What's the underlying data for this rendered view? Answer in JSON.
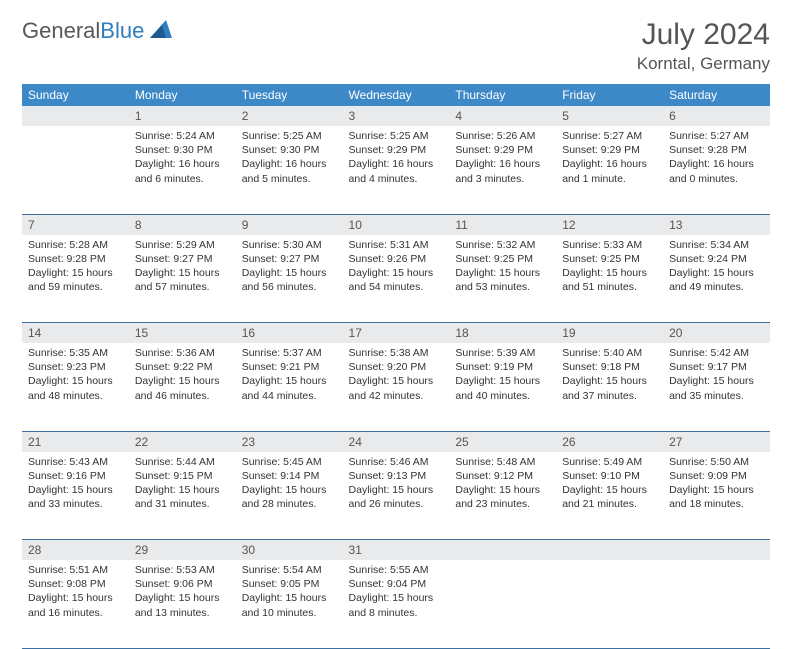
{
  "logo": {
    "general": "General",
    "blue": "Blue"
  },
  "title": "July 2024",
  "location": "Korntal, Germany",
  "colors": {
    "header_bg": "#3d89c8",
    "header_text": "#ffffff",
    "daynum_bg": "#e9eaeb",
    "row_border": "#3d6fa2",
    "logo_gray": "#585858",
    "logo_blue": "#2f7fc0"
  },
  "weekdays": [
    "Sunday",
    "Monday",
    "Tuesday",
    "Wednesday",
    "Thursday",
    "Friday",
    "Saturday"
  ],
  "weeks": [
    {
      "nums": [
        "",
        "1",
        "2",
        "3",
        "4",
        "5",
        "6"
      ],
      "cells": [
        null,
        {
          "sunrise": "Sunrise: 5:24 AM",
          "sunset": "Sunset: 9:30 PM",
          "day1": "Daylight: 16 hours",
          "day2": "and 6 minutes."
        },
        {
          "sunrise": "Sunrise: 5:25 AM",
          "sunset": "Sunset: 9:30 PM",
          "day1": "Daylight: 16 hours",
          "day2": "and 5 minutes."
        },
        {
          "sunrise": "Sunrise: 5:25 AM",
          "sunset": "Sunset: 9:29 PM",
          "day1": "Daylight: 16 hours",
          "day2": "and 4 minutes."
        },
        {
          "sunrise": "Sunrise: 5:26 AM",
          "sunset": "Sunset: 9:29 PM",
          "day1": "Daylight: 16 hours",
          "day2": "and 3 minutes."
        },
        {
          "sunrise": "Sunrise: 5:27 AM",
          "sunset": "Sunset: 9:29 PM",
          "day1": "Daylight: 16 hours",
          "day2": "and 1 minute."
        },
        {
          "sunrise": "Sunrise: 5:27 AM",
          "sunset": "Sunset: 9:28 PM",
          "day1": "Daylight: 16 hours",
          "day2": "and 0 minutes."
        }
      ]
    },
    {
      "nums": [
        "7",
        "8",
        "9",
        "10",
        "11",
        "12",
        "13"
      ],
      "cells": [
        {
          "sunrise": "Sunrise: 5:28 AM",
          "sunset": "Sunset: 9:28 PM",
          "day1": "Daylight: 15 hours",
          "day2": "and 59 minutes."
        },
        {
          "sunrise": "Sunrise: 5:29 AM",
          "sunset": "Sunset: 9:27 PM",
          "day1": "Daylight: 15 hours",
          "day2": "and 57 minutes."
        },
        {
          "sunrise": "Sunrise: 5:30 AM",
          "sunset": "Sunset: 9:27 PM",
          "day1": "Daylight: 15 hours",
          "day2": "and 56 minutes."
        },
        {
          "sunrise": "Sunrise: 5:31 AM",
          "sunset": "Sunset: 9:26 PM",
          "day1": "Daylight: 15 hours",
          "day2": "and 54 minutes."
        },
        {
          "sunrise": "Sunrise: 5:32 AM",
          "sunset": "Sunset: 9:25 PM",
          "day1": "Daylight: 15 hours",
          "day2": "and 53 minutes."
        },
        {
          "sunrise": "Sunrise: 5:33 AM",
          "sunset": "Sunset: 9:25 PM",
          "day1": "Daylight: 15 hours",
          "day2": "and 51 minutes."
        },
        {
          "sunrise": "Sunrise: 5:34 AM",
          "sunset": "Sunset: 9:24 PM",
          "day1": "Daylight: 15 hours",
          "day2": "and 49 minutes."
        }
      ]
    },
    {
      "nums": [
        "14",
        "15",
        "16",
        "17",
        "18",
        "19",
        "20"
      ],
      "cells": [
        {
          "sunrise": "Sunrise: 5:35 AM",
          "sunset": "Sunset: 9:23 PM",
          "day1": "Daylight: 15 hours",
          "day2": "and 48 minutes."
        },
        {
          "sunrise": "Sunrise: 5:36 AM",
          "sunset": "Sunset: 9:22 PM",
          "day1": "Daylight: 15 hours",
          "day2": "and 46 minutes."
        },
        {
          "sunrise": "Sunrise: 5:37 AM",
          "sunset": "Sunset: 9:21 PM",
          "day1": "Daylight: 15 hours",
          "day2": "and 44 minutes."
        },
        {
          "sunrise": "Sunrise: 5:38 AM",
          "sunset": "Sunset: 9:20 PM",
          "day1": "Daylight: 15 hours",
          "day2": "and 42 minutes."
        },
        {
          "sunrise": "Sunrise: 5:39 AM",
          "sunset": "Sunset: 9:19 PM",
          "day1": "Daylight: 15 hours",
          "day2": "and 40 minutes."
        },
        {
          "sunrise": "Sunrise: 5:40 AM",
          "sunset": "Sunset: 9:18 PM",
          "day1": "Daylight: 15 hours",
          "day2": "and 37 minutes."
        },
        {
          "sunrise": "Sunrise: 5:42 AM",
          "sunset": "Sunset: 9:17 PM",
          "day1": "Daylight: 15 hours",
          "day2": "and 35 minutes."
        }
      ]
    },
    {
      "nums": [
        "21",
        "22",
        "23",
        "24",
        "25",
        "26",
        "27"
      ],
      "cells": [
        {
          "sunrise": "Sunrise: 5:43 AM",
          "sunset": "Sunset: 9:16 PM",
          "day1": "Daylight: 15 hours",
          "day2": "and 33 minutes."
        },
        {
          "sunrise": "Sunrise: 5:44 AM",
          "sunset": "Sunset: 9:15 PM",
          "day1": "Daylight: 15 hours",
          "day2": "and 31 minutes."
        },
        {
          "sunrise": "Sunrise: 5:45 AM",
          "sunset": "Sunset: 9:14 PM",
          "day1": "Daylight: 15 hours",
          "day2": "and 28 minutes."
        },
        {
          "sunrise": "Sunrise: 5:46 AM",
          "sunset": "Sunset: 9:13 PM",
          "day1": "Daylight: 15 hours",
          "day2": "and 26 minutes."
        },
        {
          "sunrise": "Sunrise: 5:48 AM",
          "sunset": "Sunset: 9:12 PM",
          "day1": "Daylight: 15 hours",
          "day2": "and 23 minutes."
        },
        {
          "sunrise": "Sunrise: 5:49 AM",
          "sunset": "Sunset: 9:10 PM",
          "day1": "Daylight: 15 hours",
          "day2": "and 21 minutes."
        },
        {
          "sunrise": "Sunrise: 5:50 AM",
          "sunset": "Sunset: 9:09 PM",
          "day1": "Daylight: 15 hours",
          "day2": "and 18 minutes."
        }
      ]
    },
    {
      "nums": [
        "28",
        "29",
        "30",
        "31",
        "",
        "",
        ""
      ],
      "cells": [
        {
          "sunrise": "Sunrise: 5:51 AM",
          "sunset": "Sunset: 9:08 PM",
          "day1": "Daylight: 15 hours",
          "day2": "and 16 minutes."
        },
        {
          "sunrise": "Sunrise: 5:53 AM",
          "sunset": "Sunset: 9:06 PM",
          "day1": "Daylight: 15 hours",
          "day2": "and 13 minutes."
        },
        {
          "sunrise": "Sunrise: 5:54 AM",
          "sunset": "Sunset: 9:05 PM",
          "day1": "Daylight: 15 hours",
          "day2": "and 10 minutes."
        },
        {
          "sunrise": "Sunrise: 5:55 AM",
          "sunset": "Sunset: 9:04 PM",
          "day1": "Daylight: 15 hours",
          "day2": "and 8 minutes."
        },
        null,
        null,
        null
      ]
    }
  ]
}
